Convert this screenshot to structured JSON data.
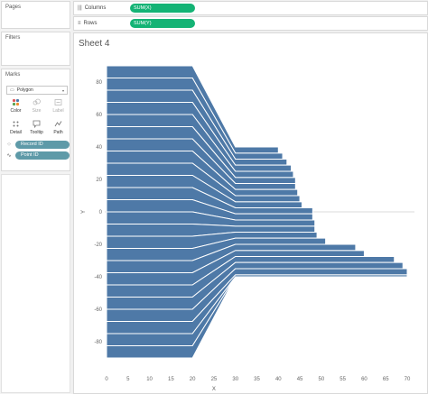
{
  "left_panel": {
    "pages_title": "Pages",
    "filters_title": "Filters",
    "marks_title": "Marks",
    "mark_type": "Polygon",
    "buttons": [
      {
        "label": "Color",
        "icon": "color-dots-icon"
      },
      {
        "label": "Size",
        "icon": "size-icon"
      },
      {
        "label": "Label",
        "icon": "label-icon"
      },
      {
        "label": "Detail",
        "icon": "detail-icon"
      },
      {
        "label": "Tooltip",
        "icon": "tooltip-icon"
      },
      {
        "label": "Path",
        "icon": "path-icon"
      }
    ],
    "pills": [
      {
        "label": "Record ID",
        "icon": "detail-icon"
      },
      {
        "label": "Point ID",
        "icon": "path-icon"
      }
    ]
  },
  "shelves": {
    "columns_label": "Columns",
    "columns_pill": "SUM(X)",
    "rows_label": "Rows",
    "rows_pill": "SUM(Y)"
  },
  "sheet": {
    "title": "Sheet 4"
  },
  "colors": {
    "accent": "#4e79a7",
    "pill_green": "#14b375",
    "pill_teal": "#5e9aa8"
  },
  "chart_data": {
    "type": "area",
    "title": "Sheet 4",
    "xlabel": "X",
    "ylabel": "Y",
    "x_ticks": [
      0,
      5,
      10,
      15,
      20,
      25,
      30,
      35,
      40,
      45,
      50,
      55,
      60,
      65,
      70
    ],
    "y_ticks": [
      80,
      60,
      40,
      20,
      0,
      -20,
      -40,
      -60,
      -80
    ],
    "xlim": [
      0,
      70
    ],
    "ylim": [
      -90,
      90
    ],
    "grid": false,
    "series": [
      {
        "y_left_top": 90,
        "y_left_bottom": 82.5,
        "y_right_top": 40,
        "y_right_bottom": 36.2,
        "x_end": 40
      },
      {
        "y_left_top": 82.5,
        "y_left_bottom": 75,
        "y_right_top": 36.2,
        "y_right_bottom": 32.5,
        "x_end": 41
      },
      {
        "y_left_top": 75,
        "y_left_bottom": 67.5,
        "y_right_top": 32.5,
        "y_right_bottom": 28.8,
        "x_end": 42
      },
      {
        "y_left_top": 67.5,
        "y_left_bottom": 60,
        "y_right_top": 28.8,
        "y_right_bottom": 25,
        "x_end": 43
      },
      {
        "y_left_top": 60,
        "y_left_bottom": 52.5,
        "y_right_top": 25,
        "y_right_bottom": 21.2,
        "x_end": 43.5
      },
      {
        "y_left_top": 52.5,
        "y_left_bottom": 45,
        "y_right_top": 21.2,
        "y_right_bottom": 17.5,
        "x_end": 44
      },
      {
        "y_left_top": 45,
        "y_left_bottom": 37.5,
        "y_right_top": 17.5,
        "y_right_bottom": 13.8,
        "x_end": 44
      },
      {
        "y_left_top": 37.5,
        "y_left_bottom": 30,
        "y_right_top": 13.8,
        "y_right_bottom": 10,
        "x_end": 44.5
      },
      {
        "y_left_top": 30,
        "y_left_bottom": 22.5,
        "y_right_top": 10,
        "y_right_bottom": 6.2,
        "x_end": 45
      },
      {
        "y_left_top": 22.5,
        "y_left_bottom": 15,
        "y_right_top": 6.2,
        "y_right_bottom": 2.5,
        "x_end": 45.5
      },
      {
        "y_left_top": 15,
        "y_left_bottom": 7.5,
        "y_right_top": 2.5,
        "y_right_bottom": -1.2,
        "x_end": 48
      },
      {
        "y_left_top": 7.5,
        "y_left_bottom": 0,
        "y_right_top": -1.2,
        "y_right_bottom": -5,
        "x_end": 48
      },
      {
        "y_left_top": 0,
        "y_left_bottom": -7.5,
        "y_right_top": -5,
        "y_right_bottom": -8.8,
        "x_end": 48.5
      },
      {
        "y_left_top": -7.5,
        "y_left_bottom": -15,
        "y_right_top": -8.8,
        "y_right_bottom": -12.5,
        "x_end": 48.5
      },
      {
        "y_left_top": -15,
        "y_left_bottom": -22.5,
        "y_right_top": -12.5,
        "y_right_bottom": -16.2,
        "x_end": 49
      },
      {
        "y_left_top": -22.5,
        "y_left_bottom": -30,
        "y_right_top": -16.2,
        "y_right_bottom": -20,
        "x_end": 51
      },
      {
        "y_left_top": -30,
        "y_left_bottom": -37.5,
        "y_right_top": -20,
        "y_right_bottom": -23.8,
        "x_end": 58
      },
      {
        "y_left_top": -37.5,
        "y_left_bottom": -45,
        "y_right_top": -23.8,
        "y_right_bottom": -27.5,
        "x_end": 60
      },
      {
        "y_left_top": -45,
        "y_left_bottom": -52.5,
        "y_right_top": -27.5,
        "y_right_bottom": -31.2,
        "x_end": 67
      },
      {
        "y_left_top": -52.5,
        "y_left_bottom": -60,
        "y_right_top": -31.2,
        "y_right_bottom": -35,
        "x_end": 69
      },
      {
        "y_left_top": -60,
        "y_left_bottom": -67.5,
        "y_right_top": -35,
        "y_right_bottom": -38.8,
        "x_end": 70
      },
      {
        "y_left_top": -67.5,
        "y_left_bottom": -75,
        "y_right_top": -38.8,
        "y_right_bottom": -40,
        "x_end": 70
      },
      {
        "y_left_top": -75,
        "y_left_bottom": -82.5,
        "y_right_top": -40,
        "y_right_bottom": -40,
        "x_end": 30
      },
      {
        "y_left_top": -82.5,
        "y_left_bottom": -90,
        "y_right_top": -40,
        "y_right_bottom": -40,
        "x_end": 30
      }
    ],
    "band_x": [
      0,
      20,
      30
    ]
  }
}
